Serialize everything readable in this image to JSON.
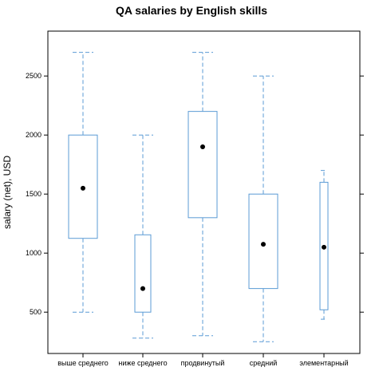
{
  "chart_data": {
    "type": "box",
    "title": "QA salaries by English skills",
    "xlabel": "",
    "ylabel": "salary (net), USD",
    "ylim": [
      150,
      2880
    ],
    "yticks": [
      500,
      1000,
      1500,
      2000,
      2500
    ],
    "grid": false,
    "legend": "none",
    "colors": {
      "box": "#5b9bd5",
      "median_point": "#000000",
      "axis": "#000000"
    },
    "categories": [
      "выше среднего",
      "ниже среднего",
      "продвинутый",
      "средний",
      "элементарный"
    ],
    "boxes": [
      {
        "category": "выше среднего",
        "whisker_low": 500,
        "q1": 1125,
        "median": 1550,
        "q3": 2000,
        "whisker_high": 2700
      },
      {
        "category": "ниже среднего",
        "whisker_low": 280,
        "q1": 500,
        "median": 700,
        "q3": 1155,
        "whisker_high": 2000
      },
      {
        "category": "продвинутый",
        "whisker_low": 300,
        "q1": 1300,
        "median": 1900,
        "q3": 2200,
        "whisker_high": 2700
      },
      {
        "category": "средний",
        "whisker_low": 250,
        "q1": 700,
        "median": 1075,
        "q3": 1500,
        "whisker_high": 2500
      },
      {
        "category": "элементарный",
        "whisker_low": 440,
        "q1": 520,
        "median": 1050,
        "q3": 1600,
        "whisker_high": 1700
      }
    ]
  }
}
